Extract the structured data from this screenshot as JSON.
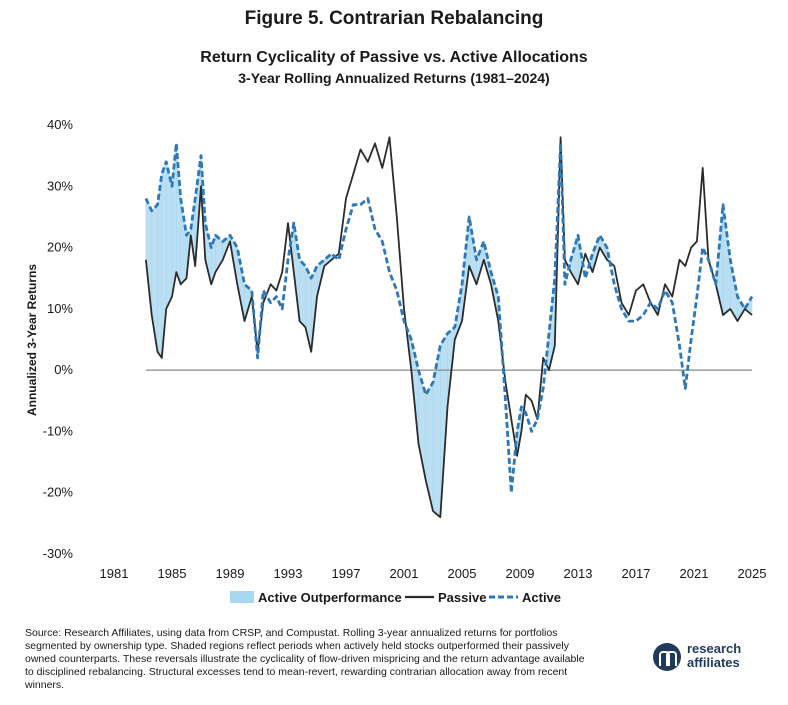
{
  "figure_label": "Figure 5. Contrarian Rebalancing",
  "source_note": "Source: Research Affiliates, using data from CRSP, and Compustat. Rolling 3-year annualized returns for portfolios segmented by ownership type. Shaded regions reflect periods when actively held stocks outperformed their passively owned counterparts. These reversals illustrate the cyclicality of flow-driven mispricing and the return advantage available to disciplined rebalancing. Structural excesses tend to mean-revert, rewarding contrarian allocation away from recent winners.",
  "logo": {
    "line1": "research",
    "line2": "affiliates"
  },
  "colors": {
    "passive": "#2b2b2b",
    "active": "#2e78b7",
    "shade": "#a9d7f0",
    "zero": "#8a8a8a"
  },
  "chart_data": {
    "type": "line",
    "title": "Return Cyclicality of Passive vs. Active Allocations",
    "subtitle": "3-Year Rolling Annualized Returns (1981–2024)",
    "ylabel": "Annualized 3-Year Returns",
    "xlabel": "",
    "xlim": [
      1981,
      2025
    ],
    "ylim": [
      -30,
      40
    ],
    "x_ticks": [
      1981,
      1985,
      1989,
      1993,
      1997,
      2001,
      2005,
      2009,
      2013,
      2017,
      2021,
      2025
    ],
    "y_ticks": [
      40,
      30,
      20,
      10,
      0,
      -10,
      -20,
      -30
    ],
    "y_tick_labels": [
      "40%",
      "30%",
      "20%",
      "10%",
      "0%",
      "-10%",
      "-20%",
      "-30%"
    ],
    "legend": {
      "placement": "bottom-center",
      "entries": [
        "Active Outperformance",
        "Passive",
        "Active"
      ]
    },
    "shaded": "Active Outperformance",
    "x": [
      1983.2,
      1983.6,
      1984.0,
      1984.3,
      1984.6,
      1985.0,
      1985.3,
      1985.6,
      1986.0,
      1986.3,
      1986.6,
      1987.0,
      1987.3,
      1987.7,
      1988.0,
      1988.5,
      1989.0,
      1989.5,
      1990.0,
      1990.5,
      1990.9,
      1991.3,
      1991.8,
      1992.2,
      1992.6,
      1993.0,
      1993.4,
      1993.8,
      1994.2,
      1994.6,
      1995.0,
      1995.5,
      1996.0,
      1996.5,
      1997.0,
      1997.5,
      1998.0,
      1998.5,
      1999.0,
      1999.5,
      2000.0,
      2000.5,
      2001.0,
      2001.5,
      2002.0,
      2002.5,
      2003.0,
      2003.5,
      2004.0,
      2004.5,
      2005.0,
      2005.5,
      2006.0,
      2006.5,
      2007.0,
      2007.5,
      2008.0,
      2008.4,
      2008.8,
      2009.1,
      2009.4,
      2009.8,
      2010.2,
      2010.6,
      2011.0,
      2011.4,
      2011.8,
      2012.1,
      2012.5,
      2013.0,
      2013.5,
      2014.0,
      2014.5,
      2015.0,
      2015.5,
      2016.0,
      2016.5,
      2017.0,
      2017.5,
      2018.0,
      2018.5,
      2019.0,
      2019.5,
      2020.0,
      2020.4,
      2020.8,
      2021.2,
      2021.6,
      2022.0,
      2022.5,
      2023.0,
      2023.5,
      2024.0,
      2024.5,
      2025.0
    ],
    "series": [
      {
        "name": "Passive",
        "style": "solid",
        "values": [
          18,
          9,
          3,
          2,
          10,
          12,
          16,
          14,
          15,
          22,
          17,
          30,
          18,
          14,
          16,
          18,
          21,
          14,
          8,
          12,
          3,
          11,
          14,
          13,
          16,
          24,
          16,
          8,
          7,
          3,
          12,
          17,
          18,
          19,
          28,
          32,
          36,
          34,
          37,
          33,
          38,
          25,
          10,
          0,
          -12,
          -18,
          -23,
          -24,
          -6,
          5,
          8,
          17,
          14,
          18,
          14,
          8,
          -2,
          -8,
          -14,
          -10,
          -4,
          -5,
          -8,
          2,
          0,
          4,
          38,
          18,
          16,
          14,
          19,
          16,
          20,
          18,
          17,
          11,
          9,
          13,
          14,
          11,
          9,
          14,
          12,
          18,
          17,
          20,
          21,
          33,
          18,
          14,
          9,
          10,
          8,
          10,
          9
        ]
      },
      {
        "name": "Active",
        "style": "dashed",
        "values": [
          28,
          26,
          27,
          32,
          34,
          30,
          37,
          28,
          22,
          23,
          28,
          35,
          24,
          20,
          22,
          21,
          22,
          20,
          14,
          13,
          2,
          13,
          11,
          12,
          10,
          18,
          24,
          18,
          17,
          15,
          17,
          18,
          19,
          18,
          23,
          27,
          27,
          28,
          23,
          21,
          16,
          13,
          8,
          5,
          0,
          -4,
          -2,
          4,
          6,
          7,
          14,
          25,
          18,
          21,
          16,
          12,
          -5,
          -20,
          -10,
          -6,
          -7,
          -10,
          -8,
          -3,
          6,
          15,
          37,
          14,
          18,
          22,
          15,
          19,
          22,
          20,
          14,
          10,
          8,
          8,
          9,
          11,
          10,
          13,
          11,
          4,
          -3,
          5,
          12,
          20,
          18,
          14,
          27,
          18,
          12,
          10,
          12
        ]
      }
    ]
  }
}
